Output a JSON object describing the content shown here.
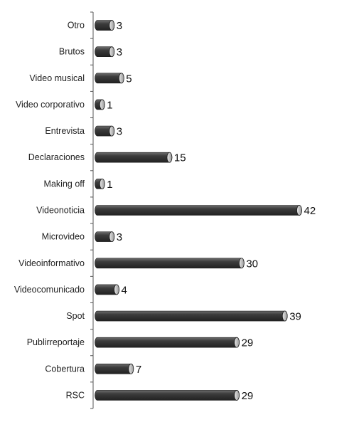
{
  "chart_data": {
    "type": "bar",
    "orientation": "horizontal",
    "categories": [
      "Otro",
      "Brutos",
      "Video musical",
      "Video corporativo",
      "Entrevista",
      "Declaraciones",
      "Making off",
      "Videonoticia",
      "Microvideo",
      "Videoinformativo",
      "Videocomunicado",
      "Spot",
      "Publirreportaje",
      "Cobertura",
      "RSC"
    ],
    "values": [
      3,
      3,
      5,
      1,
      3,
      15,
      1,
      42,
      3,
      30,
      4,
      39,
      29,
      7,
      29
    ],
    "title": "",
    "xlabel": "",
    "ylabel": "",
    "xlim": [
      0,
      42
    ],
    "grid": false,
    "legend": "none",
    "bar_color": "#3a3a3a",
    "bar_style": "3d-cylinder"
  }
}
